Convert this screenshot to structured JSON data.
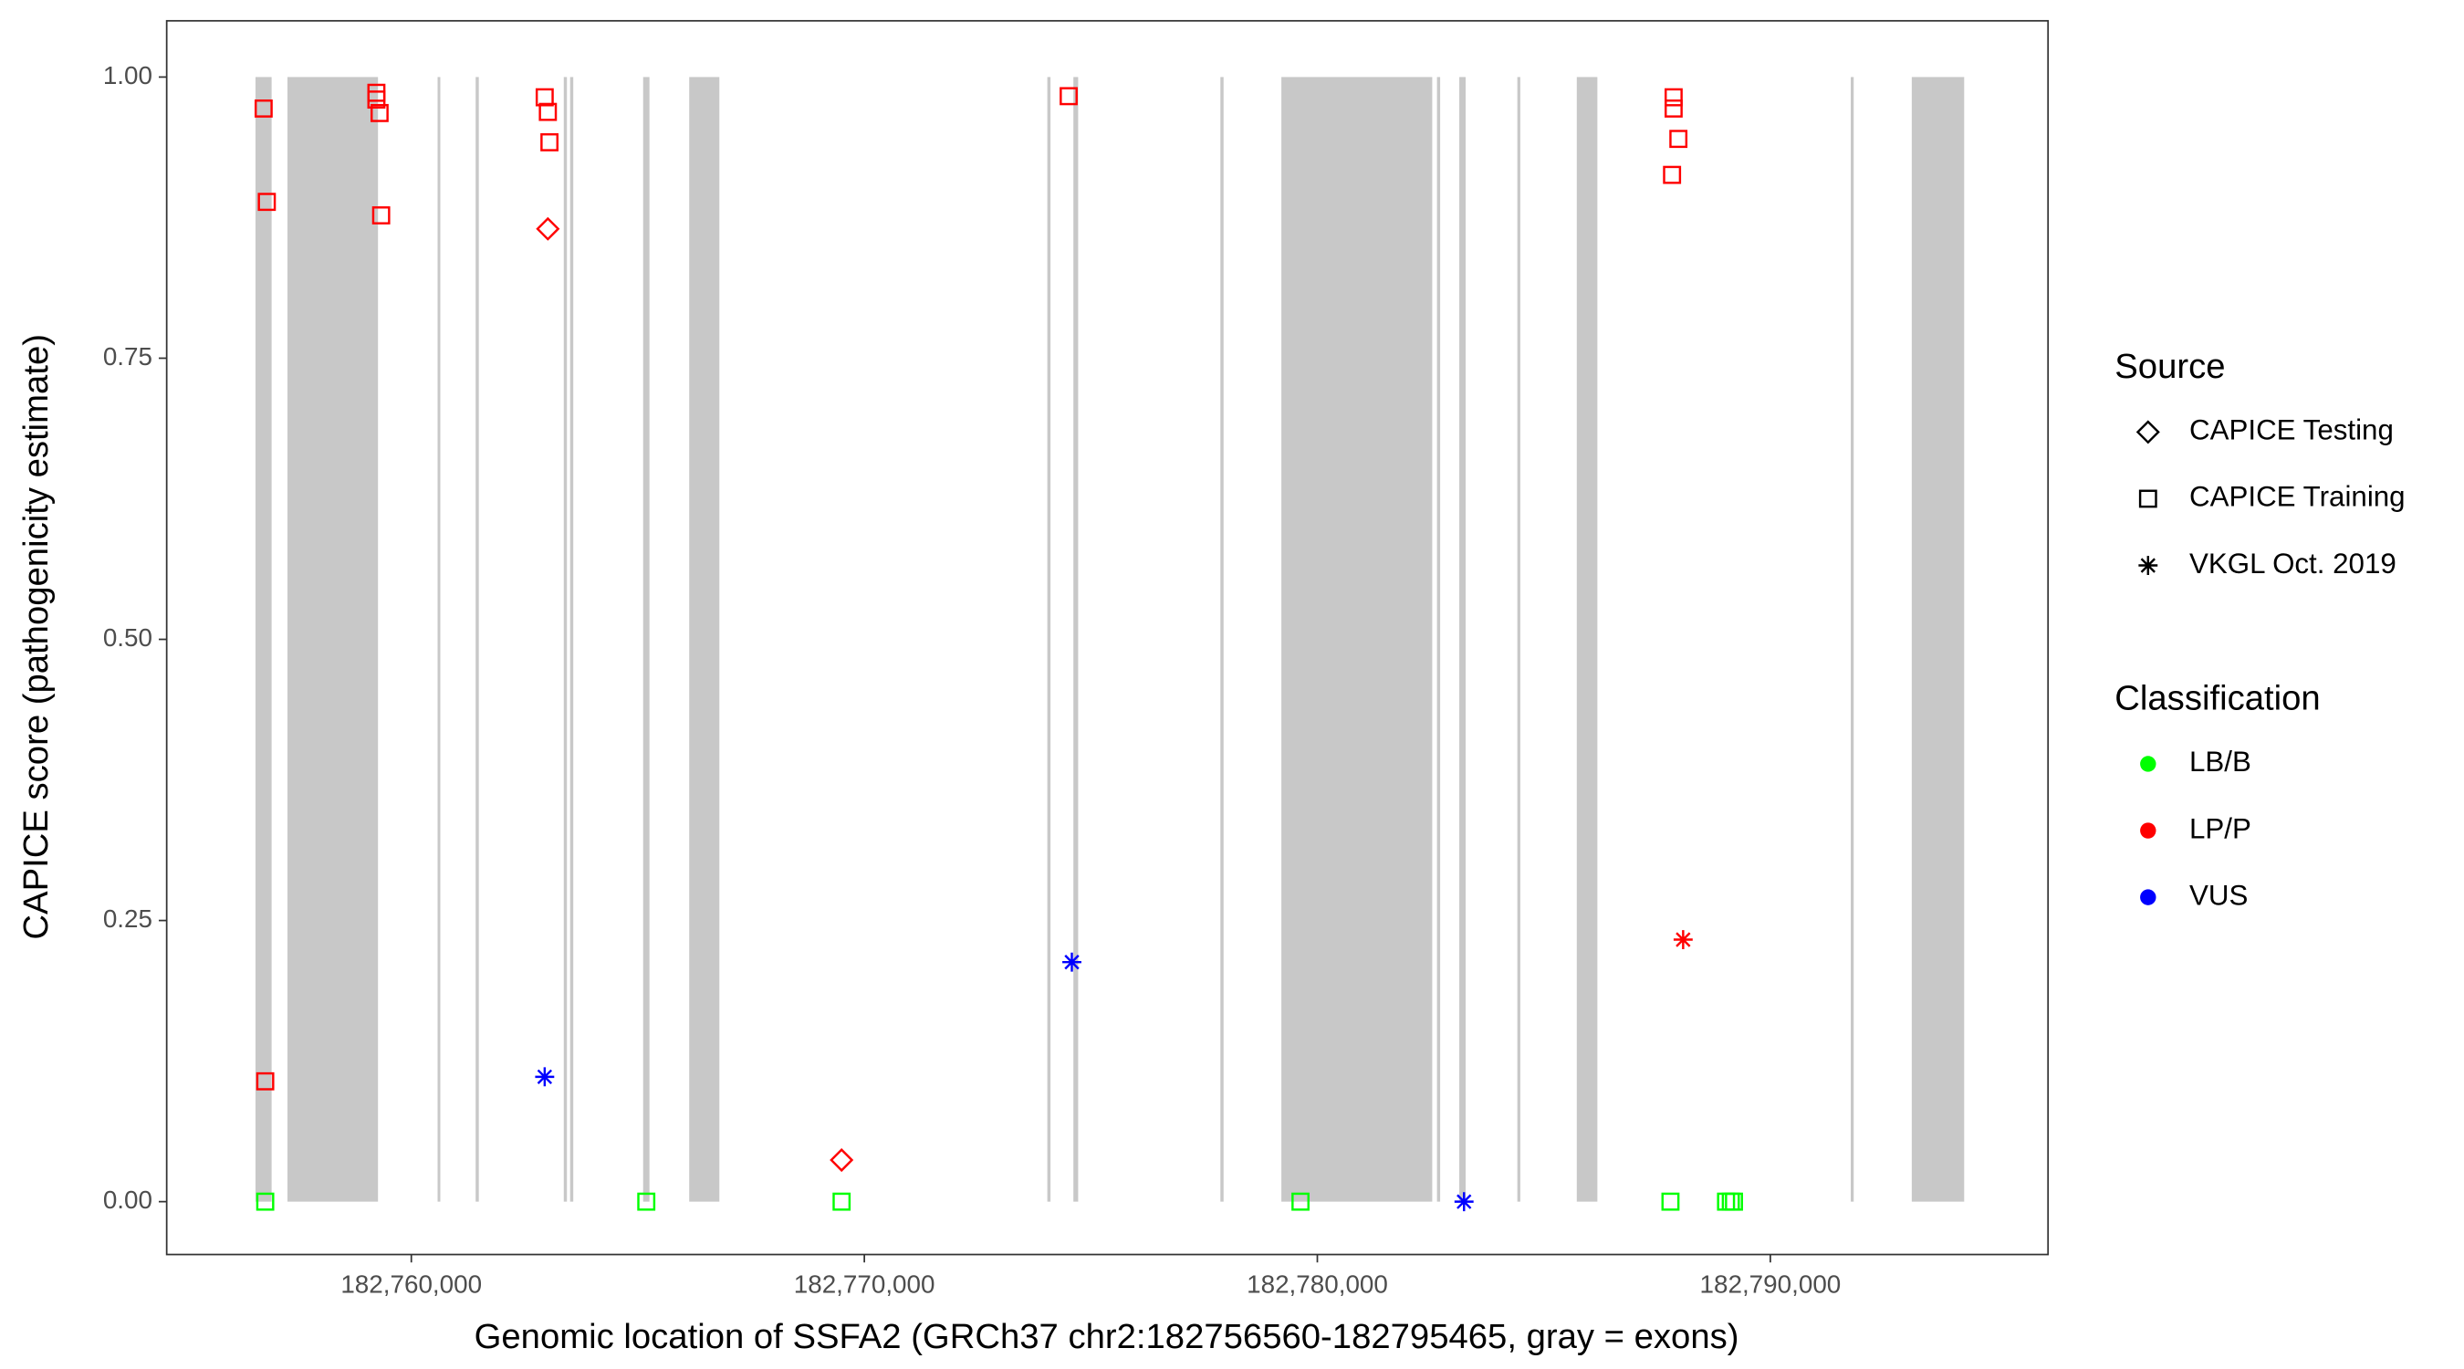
{
  "chart_data": {
    "type": "scatter",
    "x_label": "Genomic location of SSFA2 (GRCh37 chr2:182756560-182795465, gray = exons)",
    "y_label": "CAPICE score (pathogenicity estimate)",
    "xlim": [
      182754600,
      182796130
    ],
    "ylim": [
      -0.047,
      1.05
    ],
    "xticks": [
      {
        "value": 182760000,
        "label": "182,760,000"
      },
      {
        "value": 182770000,
        "label": "182,770,000"
      },
      {
        "value": 182780000,
        "label": "182,780,000"
      },
      {
        "value": 182790000,
        "label": "182,790,000"
      }
    ],
    "yticks": [
      {
        "value": 0,
        "label": "0.00"
      },
      {
        "value": 0.25,
        "label": "0.25"
      },
      {
        "value": 0.5,
        "label": "0.50"
      },
      {
        "value": 0.75,
        "label": "0.75"
      },
      {
        "value": 1,
        "label": "1.00"
      }
    ],
    "exon_color": "#c8c8c8",
    "exons": [
      [
        182756560,
        182756916
      ],
      [
        182757266,
        182759264
      ],
      [
        182760580,
        182760640
      ],
      [
        182761420,
        182761490
      ],
      [
        182763365,
        182763435
      ],
      [
        182763505,
        182763575
      ],
      [
        182765117,
        182765257
      ],
      [
        182766134,
        182766800
      ],
      [
        182774040,
        182774110
      ],
      [
        182774615,
        182774720
      ],
      [
        182777860,
        182777930
      ],
      [
        182779206,
        182782536
      ],
      [
        182782641,
        182782711
      ],
      [
        182783133,
        182783273
      ],
      [
        182784415,
        182784480
      ],
      [
        182785727,
        182786182
      ],
      [
        182791775,
        182791840
      ],
      [
        182793122,
        182794279
      ]
    ],
    "source_legend": {
      "title": "Source",
      "items": [
        {
          "name": "CAPICE Testing",
          "shape": "diamond"
        },
        {
          "name": "CAPICE Training",
          "shape": "square"
        },
        {
          "name": "VKGL Oct. 2019",
          "shape": "asterisk"
        }
      ]
    },
    "classification_legend": {
      "title": "Classification",
      "items": [
        {
          "name": "LB/B",
          "color": "#00ff00"
        },
        {
          "name": "LP/P",
          "color": "#ff0000"
        },
        {
          "name": "VUS",
          "color": "#0000ff"
        }
      ]
    },
    "series": [
      {
        "source": "CAPICE Training",
        "classification": "LP/P",
        "shape": "square",
        "color": "#ff0000",
        "x": [
          182756740,
          182756810,
          182756775,
          182759229,
          182759229,
          182759299,
          182759334,
          182762944,
          182763014,
          182763049,
          182774511,
          182787865,
          182787865,
          182787970,
          182787830
        ],
        "y": [
          0.972,
          0.889,
          0.107,
          0.986,
          0.98,
          0.968,
          0.877,
          0.982,
          0.969,
          0.942,
          0.983,
          0.982,
          0.972,
          0.945,
          0.913
        ]
      },
      {
        "source": "CAPICE Training",
        "classification": "LB/B",
        "shape": "square",
        "color": "#00ff00",
        "x": [
          182756775,
          182765187,
          182769498,
          182779628,
          182787795,
          182789022,
          182789127,
          182789197
        ],
        "y": [
          0,
          0,
          0,
          0,
          0,
          0,
          0,
          0
        ]
      },
      {
        "source": "CAPICE Testing",
        "classification": "LP/P",
        "shape": "diamond",
        "color": "#ff0000",
        "x": [
          182763014,
          182769498
        ],
        "y": [
          0.865,
          0.037
        ]
      },
      {
        "source": "VKGL Oct. 2019",
        "classification": "VUS",
        "shape": "asterisk",
        "color": "#0000ff",
        "x": [
          182762944,
          182774581,
          182783238
        ],
        "y": [
          0.111,
          0.213,
          0
        ]
      },
      {
        "source": "VKGL Oct. 2019",
        "classification": "LP/P",
        "shape": "asterisk",
        "color": "#ff0000",
        "x": [
          182788075
        ],
        "y": [
          0.233
        ]
      }
    ]
  }
}
